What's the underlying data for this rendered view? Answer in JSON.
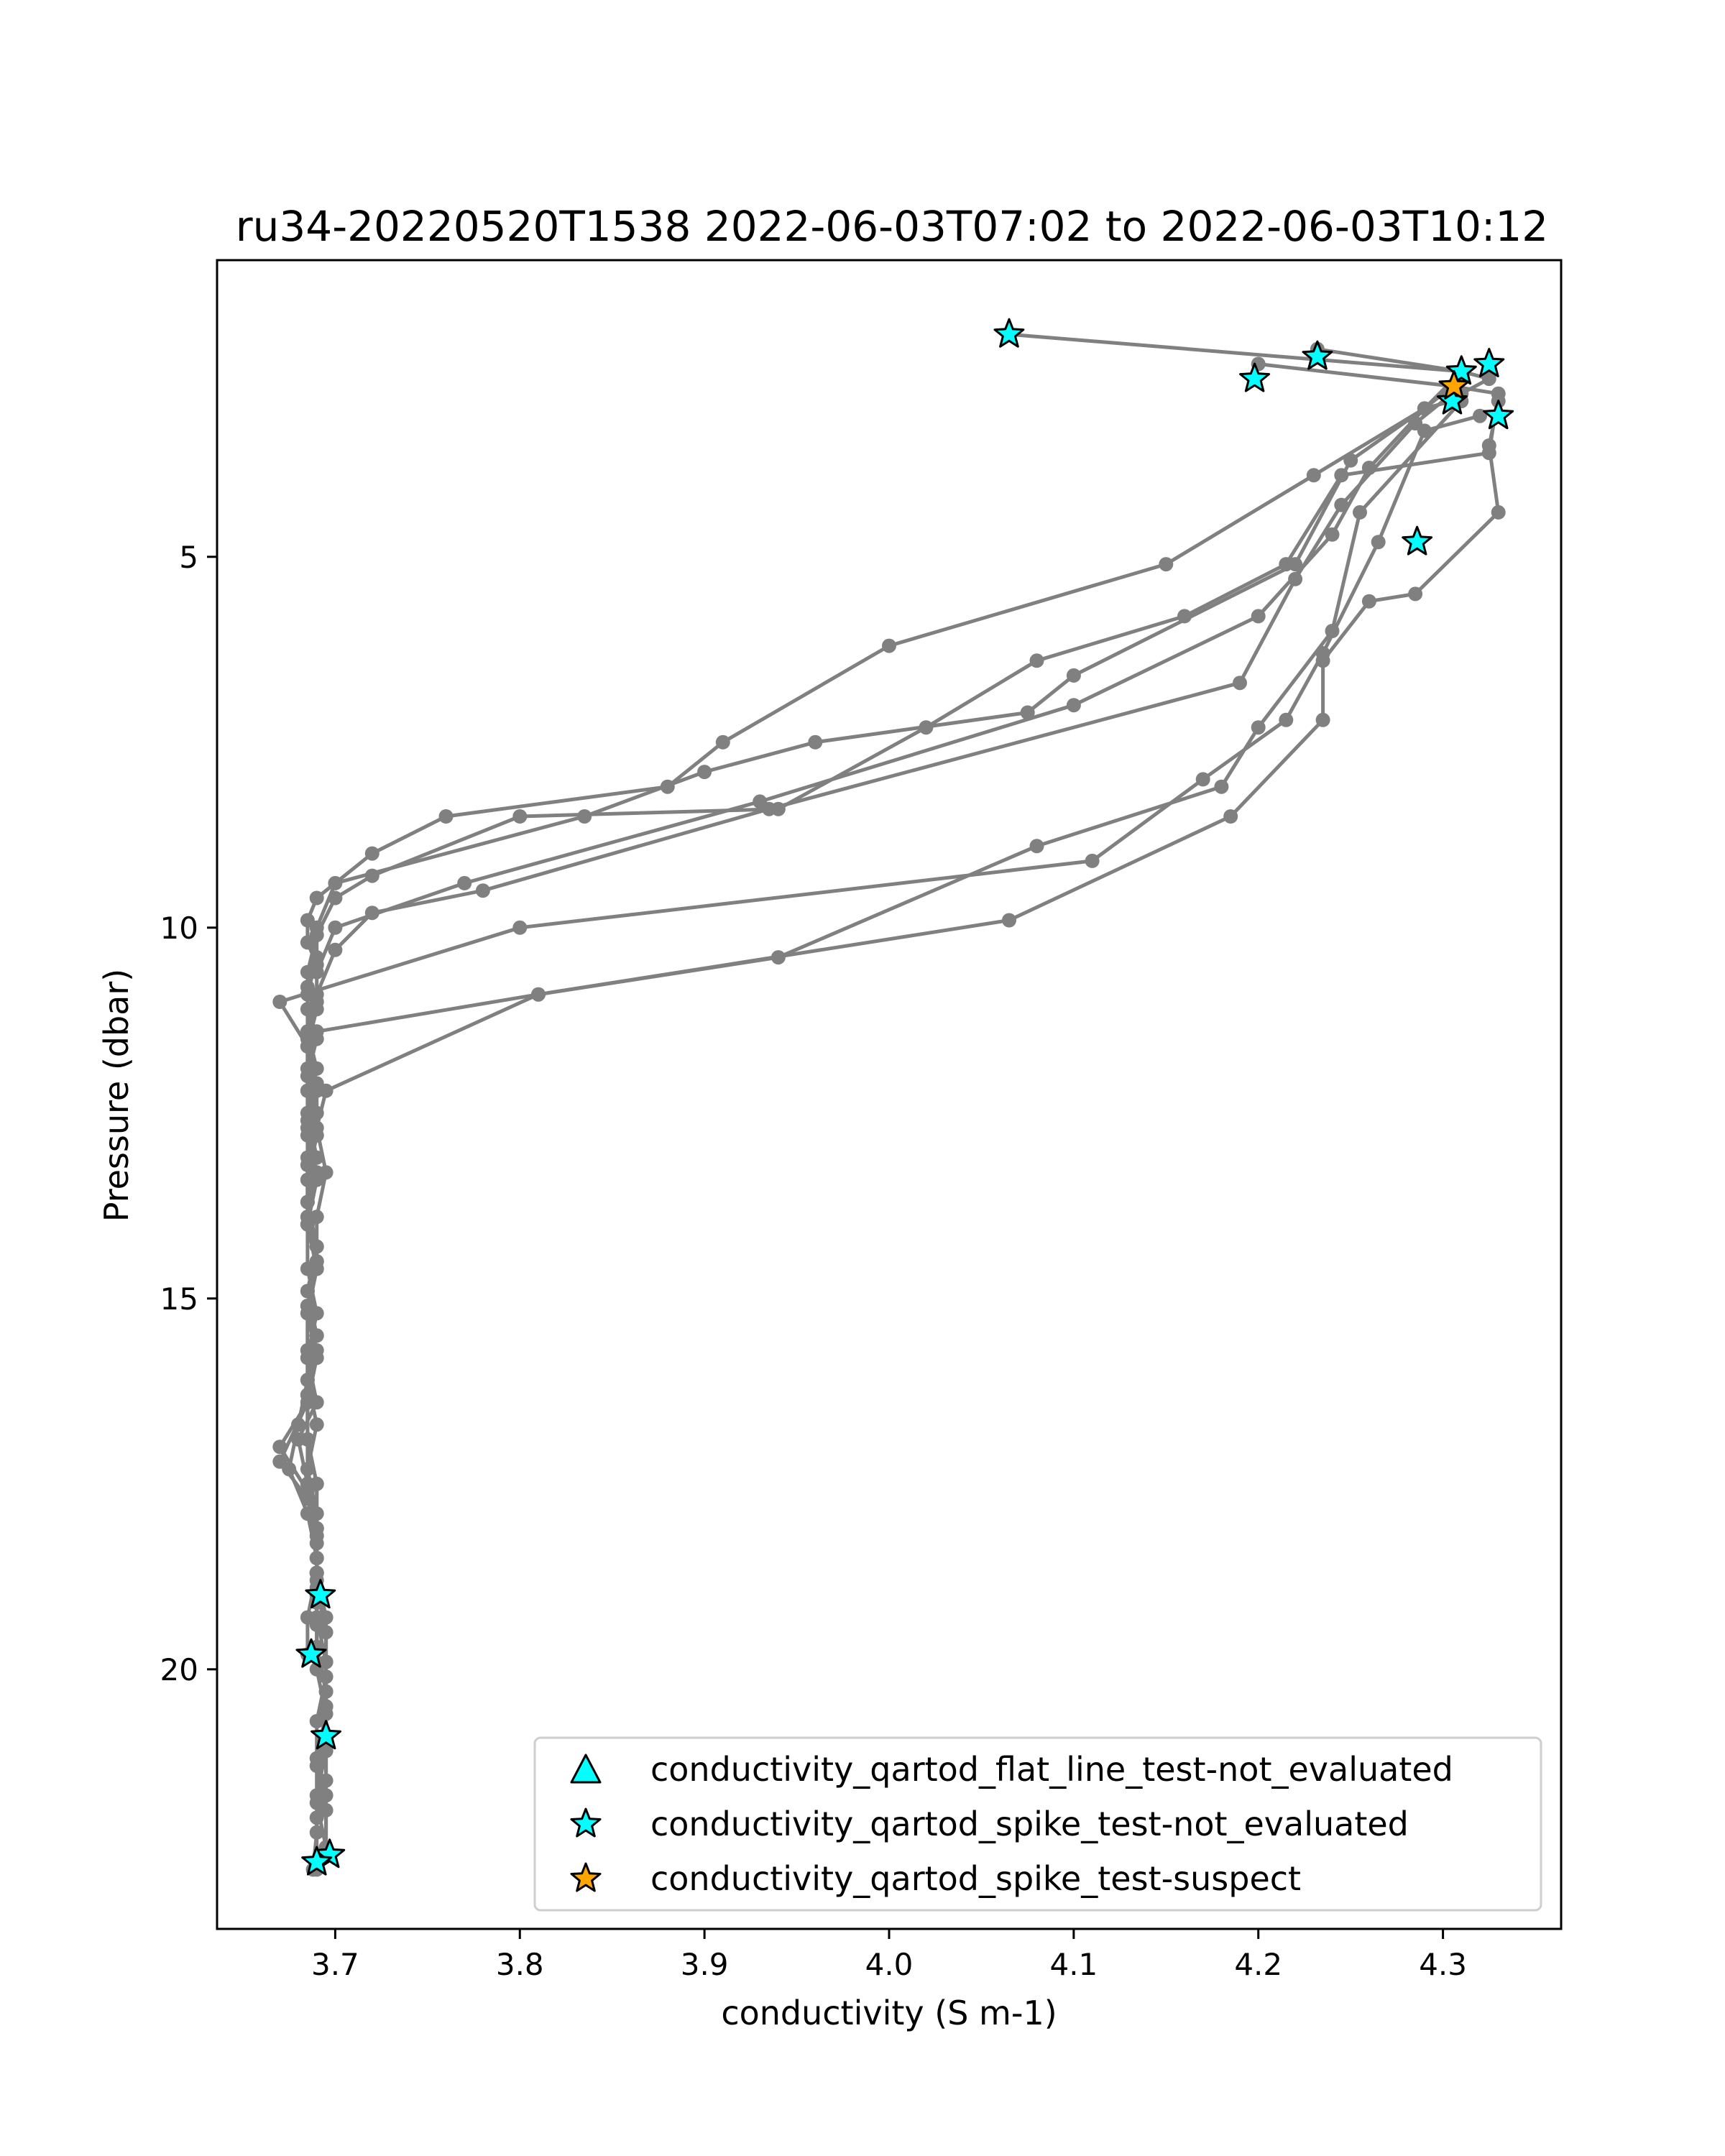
{
  "chart_data": {
    "type": "scatter",
    "title": "ru34-20220520T1538 2022-06-03T07:02 to 2022-06-03T10:12",
    "xlabel": "conductivity (S m-1)",
    "ylabel": "Pressure (dbar)",
    "xlim": [
      3.636,
      4.364
    ],
    "ylim": [
      23.5,
      1.0
    ],
    "y_inverted": true,
    "grid": false,
    "legend_position": "lower right",
    "x_ticks": [
      3.7,
      3.8,
      3.9,
      4.0,
      4.1,
      4.2,
      4.3
    ],
    "x_tick_labels": [
      "3.7",
      "3.8",
      "3.9",
      "4.0",
      "4.1",
      "4.2",
      "4.3"
    ],
    "y_ticks": [
      5,
      10,
      15,
      20
    ],
    "y_tick_labels": [
      "5",
      "10",
      "15",
      "20"
    ],
    "profile_color": "#808080",
    "profiles": [
      [
        [
          4.065,
          2.0
        ],
        [
          4.31,
          2.5
        ],
        [
          4.325,
          2.6
        ],
        [
          4.31,
          2.8
        ],
        [
          4.305,
          2.9
        ],
        [
          4.29,
          3.0
        ],
        [
          4.23,
          3.9
        ],
        [
          4.15,
          5.1
        ],
        [
          4.0,
          6.2
        ],
        [
          3.91,
          7.5
        ],
        [
          3.88,
          8.1
        ],
        [
          3.76,
          8.5
        ],
        [
          3.72,
          9.0
        ],
        [
          3.69,
          9.6
        ],
        [
          3.685,
          9.9
        ],
        [
          3.685,
          10.2
        ],
        [
          3.69,
          10.5
        ],
        [
          3.685,
          10.8
        ],
        [
          3.69,
          11.1
        ],
        [
          3.685,
          11.6
        ],
        [
          3.685,
          12.2
        ],
        [
          3.69,
          12.8
        ],
        [
          3.685,
          13.4
        ],
        [
          3.685,
          14.0
        ],
        [
          3.69,
          14.6
        ],
        [
          3.685,
          15.2
        ],
        [
          3.685,
          15.8
        ],
        [
          3.69,
          16.4
        ],
        [
          3.68,
          16.9
        ],
        [
          3.685,
          17.5
        ],
        [
          3.69,
          18.1
        ],
        [
          3.69,
          18.7
        ],
        [
          3.69,
          19.0
        ]
      ],
      [
        [
          4.2,
          2.4
        ],
        [
          4.305,
          2.7
        ],
        [
          4.33,
          2.8
        ],
        [
          4.325,
          3.6
        ],
        [
          4.245,
          3.9
        ],
        [
          4.215,
          5.1
        ],
        [
          4.16,
          5.8
        ],
        [
          4.08,
          6.4
        ],
        [
          4.02,
          7.3
        ],
        [
          3.94,
          8.4
        ],
        [
          3.8,
          8.5
        ],
        [
          3.72,
          9.3
        ],
        [
          3.7,
          9.6
        ],
        [
          3.69,
          10.1
        ],
        [
          3.685,
          10.6
        ],
        [
          3.685,
          11.1
        ],
        [
          3.69,
          11.5
        ],
        [
          3.685,
          12.0
        ],
        [
          3.685,
          12.6
        ],
        [
          3.685,
          13.2
        ],
        [
          3.685,
          13.9
        ],
        [
          3.69,
          14.5
        ],
        [
          3.685,
          15.1
        ],
        [
          3.685,
          15.7
        ],
        [
          3.685,
          16.3
        ],
        [
          3.685,
          16.9
        ],
        [
          3.69,
          17.5
        ],
        [
          3.69,
          18.1
        ],
        [
          3.69,
          18.7
        ],
        [
          3.685,
          19.3
        ],
        [
          3.685,
          19.8
        ]
      ],
      [
        [
          4.232,
          2.2
        ],
        [
          4.31,
          2.5
        ],
        [
          4.29,
          3.0
        ],
        [
          4.25,
          3.7
        ],
        [
          4.22,
          5.1
        ],
        [
          4.1,
          6.6
        ],
        [
          4.075,
          7.1
        ],
        [
          3.96,
          7.5
        ],
        [
          3.9,
          7.9
        ],
        [
          3.835,
          8.5
        ],
        [
          3.7,
          9.4
        ],
        [
          3.69,
          10.0
        ],
        [
          3.69,
          10.4
        ],
        [
          3.685,
          10.9
        ],
        [
          3.685,
          11.4
        ],
        [
          3.69,
          11.9
        ],
        [
          3.685,
          12.5
        ],
        [
          3.69,
          13.1
        ],
        [
          3.685,
          13.7
        ],
        [
          3.69,
          14.3
        ],
        [
          3.685,
          14.9
        ],
        [
          3.69,
          15.5
        ],
        [
          3.685,
          16.1
        ],
        [
          3.69,
          16.7
        ],
        [
          3.685,
          17.3
        ],
        [
          3.69,
          17.9
        ],
        [
          3.69,
          18.5
        ],
        [
          3.69,
          19.1
        ],
        [
          3.69,
          19.7
        ],
        [
          3.695,
          20.3
        ],
        [
          3.695,
          20.9
        ]
      ],
      [
        [
          4.31,
          2.6
        ],
        [
          4.29,
          3.0
        ],
        [
          4.26,
          3.8
        ],
        [
          4.24,
          4.7
        ],
        [
          4.2,
          5.8
        ],
        [
          4.1,
          7.0
        ],
        [
          3.93,
          8.3
        ],
        [
          3.77,
          9.4
        ],
        [
          3.7,
          10.0
        ],
        [
          3.69,
          10.6
        ],
        [
          3.69,
          11.0
        ],
        [
          3.685,
          11.6
        ],
        [
          3.69,
          12.2
        ],
        [
          3.69,
          12.8
        ],
        [
          3.685,
          13.4
        ],
        [
          3.685,
          14.0
        ],
        [
          3.69,
          14.6
        ],
        [
          3.685,
          15.2
        ],
        [
          3.69,
          15.8
        ],
        [
          3.685,
          16.4
        ],
        [
          3.67,
          17.0
        ],
        [
          3.685,
          17.6
        ],
        [
          3.69,
          18.2
        ],
        [
          3.69,
          18.8
        ],
        [
          3.69,
          19.4
        ],
        [
          3.69,
          20.0
        ],
        [
          3.695,
          20.6
        ],
        [
          3.69,
          21.2
        ],
        [
          3.69,
          21.8
        ],
        [
          3.695,
          22.4
        ]
      ],
      [
        [
          4.305,
          2.8
        ],
        [
          4.285,
          3.2
        ],
        [
          4.245,
          4.3
        ],
        [
          4.22,
          5.3
        ],
        [
          4.19,
          6.7
        ],
        [
          3.935,
          8.4
        ],
        [
          3.78,
          9.5
        ],
        [
          3.72,
          9.8
        ],
        [
          3.7,
          10.3
        ],
        [
          3.69,
          10.9
        ],
        [
          3.685,
          11.5
        ],
        [
          3.69,
          12.1
        ],
        [
          3.685,
          12.7
        ],
        [
          3.69,
          13.3
        ],
        [
          3.685,
          13.9
        ],
        [
          3.69,
          14.5
        ],
        [
          3.685,
          15.1
        ],
        [
          3.69,
          15.7
        ],
        [
          3.685,
          16.3
        ],
        [
          3.685,
          16.9
        ],
        [
          3.69,
          17.5
        ],
        [
          3.69,
          18.1
        ],
        [
          3.69,
          18.7
        ],
        [
          3.695,
          19.3
        ],
        [
          3.695,
          19.9
        ],
        [
          3.695,
          20.5
        ],
        [
          3.695,
          21.1
        ],
        [
          3.69,
          21.7
        ],
        [
          3.69,
          22.2
        ],
        [
          3.688,
          22.7
        ]
      ],
      [
        [
          4.31,
          2.9
        ],
        [
          4.255,
          4.4
        ],
        [
          4.24,
          6.0
        ],
        [
          4.2,
          7.3
        ],
        [
          4.18,
          8.1
        ],
        [
          4.08,
          8.9
        ],
        [
          3.94,
          10.4
        ],
        [
          3.81,
          10.9
        ],
        [
          3.69,
          11.4
        ],
        [
          3.685,
          11.9
        ],
        [
          3.69,
          12.5
        ],
        [
          3.685,
          13.1
        ],
        [
          3.685,
          13.7
        ],
        [
          3.69,
          14.3
        ],
        [
          3.685,
          14.9
        ],
        [
          3.69,
          15.5
        ],
        [
          3.685,
          16.1
        ],
        [
          3.68,
          16.7
        ],
        [
          3.675,
          17.3
        ],
        [
          3.685,
          17.9
        ],
        [
          3.69,
          18.5
        ],
        [
          3.69,
          19.1
        ],
        [
          3.69,
          19.7
        ],
        [
          3.695,
          20.3
        ],
        [
          3.695,
          20.9
        ],
        [
          3.695,
          21.5
        ],
        [
          3.69,
          22.0
        ],
        [
          3.69,
          22.7
        ]
      ],
      [
        [
          4.32,
          3.1
        ],
        [
          4.29,
          3.3
        ],
        [
          4.265,
          4.8
        ],
        [
          4.235,
          6.3
        ],
        [
          4.215,
          7.2
        ],
        [
          4.17,
          8.0
        ],
        [
          4.11,
          9.1
        ],
        [
          3.8,
          10.0
        ],
        [
          3.67,
          11.0
        ],
        [
          3.685,
          11.6
        ],
        [
          3.685,
          12.2
        ],
        [
          3.685,
          12.8
        ],
        [
          3.69,
          13.4
        ],
        [
          3.685,
          14.0
        ],
        [
          3.685,
          14.6
        ],
        [
          3.69,
          15.2
        ],
        [
          3.685,
          15.8
        ],
        [
          3.685,
          16.4
        ],
        [
          3.67,
          17.2
        ],
        [
          3.685,
          17.7
        ],
        [
          3.69,
          18.3
        ],
        [
          3.69,
          18.9
        ],
        [
          3.695,
          19.5
        ],
        [
          3.695,
          20.1
        ],
        [
          3.69,
          20.7
        ],
        [
          3.69,
          21.3
        ],
        [
          3.695,
          21.9
        ],
        [
          3.695,
          22.5
        ]
      ],
      [
        [
          4.33,
          2.9
        ],
        [
          4.325,
          3.5
        ],
        [
          4.33,
          4.4
        ],
        [
          4.285,
          5.5
        ],
        [
          4.26,
          5.6
        ],
        [
          4.235,
          6.4
        ],
        [
          4.235,
          7.2
        ],
        [
          4.185,
          8.5
        ],
        [
          4.065,
          9.9
        ],
        [
          3.81,
          10.9
        ],
        [
          3.695,
          12.2
        ],
        [
          3.69,
          12.7
        ],
        [
          3.695,
          13.3
        ],
        [
          3.69,
          13.9
        ],
        [
          3.69,
          14.5
        ],
        [
          3.685,
          15.1
        ],
        [
          3.685,
          15.7
        ],
        [
          3.685,
          16.3
        ],
        [
          3.685,
          16.9
        ],
        [
          3.685,
          17.5
        ],
        [
          3.69,
          18.1
        ],
        [
          3.69,
          18.7
        ],
        [
          3.69,
          19.3
        ],
        [
          3.695,
          19.9
        ],
        [
          3.695,
          20.5
        ],
        [
          3.695,
          21.1
        ],
        [
          3.695,
          21.7
        ],
        [
          3.695,
          22.4
        ]
      ]
    ],
    "flagged_points": [
      {
        "x": 4.065,
        "y": 2.0,
        "flag": "spike-not_evaluated"
      },
      {
        "x": 4.232,
        "y": 2.3,
        "flag": "spike-not_evaluated"
      },
      {
        "x": 4.198,
        "y": 2.6,
        "flag": "spike-not_evaluated"
      },
      {
        "x": 4.31,
        "y": 2.5,
        "flag": "spike-not_evaluated"
      },
      {
        "x": 4.325,
        "y": 2.4,
        "flag": "spike-not_evaluated"
      },
      {
        "x": 4.305,
        "y": 2.9,
        "flag": "spike-not_evaluated"
      },
      {
        "x": 4.33,
        "y": 3.1,
        "flag": "spike-not_evaluated"
      },
      {
        "x": 4.306,
        "y": 2.7,
        "flag": "spike-suspect"
      },
      {
        "x": 4.286,
        "y": 4.8,
        "flag": "spike-not_evaluated"
      },
      {
        "x": 3.692,
        "y": 19.0,
        "flag": "spike-not_evaluated"
      },
      {
        "x": 3.687,
        "y": 19.8,
        "flag": "spike-not_evaluated"
      },
      {
        "x": 3.695,
        "y": 20.9,
        "flag": "spike-not_evaluated"
      },
      {
        "x": 3.697,
        "y": 22.5,
        "flag": "spike-not_evaluated"
      },
      {
        "x": 3.69,
        "y": 22.6,
        "flag": "spike-not_evaluated"
      }
    ],
    "legend": [
      {
        "label": "conductivity_qartod_flat_line_test-not_evaluated",
        "marker": "triangle",
        "color": "#00FFFF"
      },
      {
        "label": "conductivity_qartod_spike_test-not_evaluated",
        "marker": "star",
        "color": "#00FFFF"
      },
      {
        "label": "conductivity_qartod_spike_test-suspect",
        "marker": "star",
        "color": "#FFA500"
      }
    ]
  }
}
